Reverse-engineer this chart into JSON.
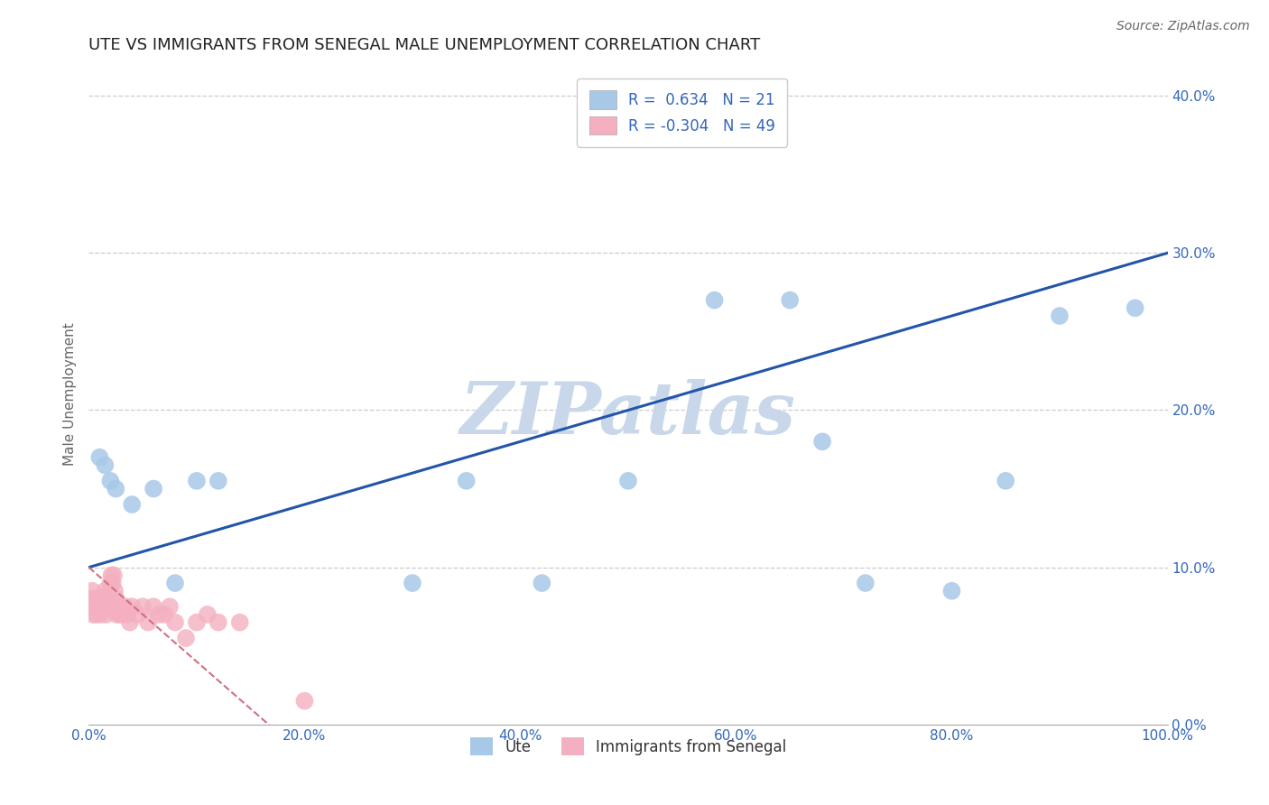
{
  "title": "UTE VS IMMIGRANTS FROM SENEGAL MALE UNEMPLOYMENT CORRELATION CHART",
  "source": "Source: ZipAtlas.com",
  "ylabel": "Male Unemployment",
  "legend_label_1": "Ute",
  "legend_label_2": "Immigrants from Senegal",
  "R1": 0.634,
  "N1": 21,
  "R2": -0.304,
  "N2": 49,
  "xlim": [
    0.0,
    1.0
  ],
  "ylim": [
    0.0,
    0.42
  ],
  "color_blue": "#a8c8e8",
  "color_pink": "#f4b0c0",
  "line_blue": "#2255aa",
  "line_pink": "#d07080",
  "watermark": "ZIPatlas",
  "watermark_color": "#c8d8ea",
  "blue_x": [
    0.01,
    0.015,
    0.02,
    0.025,
    0.04,
    0.06,
    0.08,
    0.1,
    0.12,
    0.3,
    0.35,
    0.42,
    0.5,
    0.58,
    0.65,
    0.68,
    0.72,
    0.8,
    0.85,
    0.9,
    0.97
  ],
  "blue_y": [
    0.17,
    0.165,
    0.155,
    0.15,
    0.14,
    0.15,
    0.09,
    0.155,
    0.155,
    0.09,
    0.155,
    0.09,
    0.155,
    0.27,
    0.27,
    0.18,
    0.09,
    0.085,
    0.155,
    0.26,
    0.265
  ],
  "pink_x": [
    0.001,
    0.002,
    0.003,
    0.004,
    0.005,
    0.006,
    0.007,
    0.008,
    0.009,
    0.01,
    0.011,
    0.012,
    0.013,
    0.014,
    0.015,
    0.016,
    0.017,
    0.018,
    0.019,
    0.02,
    0.021,
    0.022,
    0.023,
    0.024,
    0.025,
    0.026,
    0.027,
    0.028,
    0.029,
    0.03,
    0.032,
    0.034,
    0.036,
    0.038,
    0.04,
    0.045,
    0.05,
    0.055,
    0.06,
    0.065,
    0.07,
    0.075,
    0.08,
    0.09,
    0.1,
    0.11,
    0.12,
    0.14,
    0.2
  ],
  "pink_y": [
    0.075,
    0.08,
    0.085,
    0.07,
    0.075,
    0.08,
    0.07,
    0.075,
    0.08,
    0.075,
    0.07,
    0.075,
    0.08,
    0.075,
    0.085,
    0.07,
    0.075,
    0.08,
    0.085,
    0.09,
    0.095,
    0.09,
    0.095,
    0.085,
    0.08,
    0.07,
    0.075,
    0.07,
    0.075,
    0.07,
    0.075,
    0.075,
    0.07,
    0.065,
    0.075,
    0.07,
    0.075,
    0.065,
    0.075,
    0.07,
    0.07,
    0.075,
    0.065,
    0.055,
    0.065,
    0.07,
    0.065,
    0.065,
    0.015
  ]
}
